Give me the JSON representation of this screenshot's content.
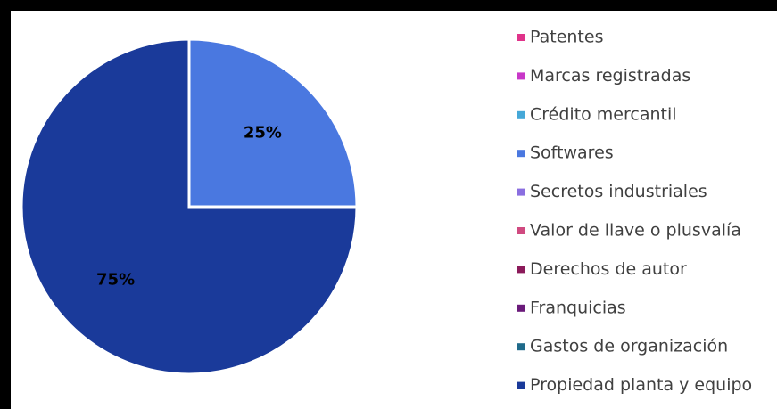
{
  "chart_data": {
    "type": "pie",
    "categories": [
      "Patentes",
      "Marcas registradas",
      "Crédito mercantil",
      "Softwares",
      "Secretos industriales",
      "Valor de llave o plusvalía",
      "Derechos de autor",
      "Franquicias",
      "Gastos de organización",
      "Propiedad planta y equipo"
    ],
    "values": [
      0,
      0,
      0,
      25,
      0,
      0,
      0,
      0,
      0,
      75
    ],
    "value_labels": [
      null,
      null,
      null,
      "25%",
      null,
      null,
      null,
      null,
      null,
      "75%"
    ],
    "colors": [
      "#e0338a",
      "#c837c8",
      "#45a8d8",
      "#4a78e0",
      "#8a6ee0",
      "#d04a80",
      "#8b1a5a",
      "#6a1a7a",
      "#1f6a8a",
      "#1a3a9a"
    ],
    "legend": "right"
  }
}
